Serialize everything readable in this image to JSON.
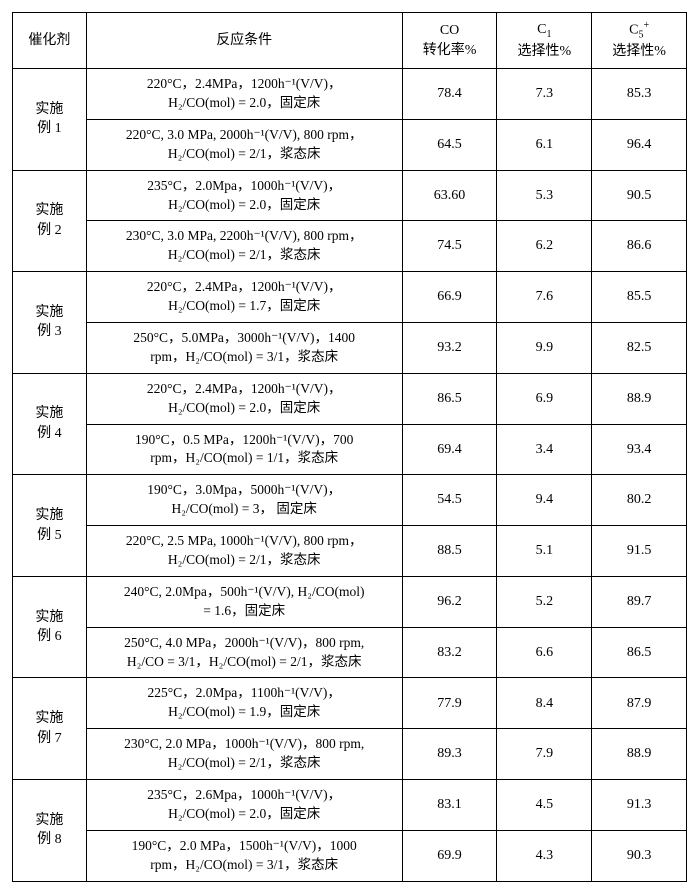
{
  "header": {
    "catalyst": "催化剂",
    "conditions": "反应条件",
    "co_conv": "CO\n转化率%",
    "c1_sel": "C₁\n选择性%",
    "c5_sel": "C₅⁺\n选择性%"
  },
  "rows": [
    {
      "catalyst": "实施\n例 1",
      "sub": [
        {
          "cond": "220°C，2.4MPa，1200h⁻¹(V/V)，\nH₂/CO(mol) = 2.0，固定床",
          "co": "78.4",
          "c1": "7.3",
          "c5": "85.3"
        },
        {
          "cond": "220°C, 3.0 MPa, 2000h⁻¹(V/V), 800 rpm，\nH₂/CO(mol) = 2/1，浆态床",
          "co": "64.5",
          "c1": "6.1",
          "c5": "96.4"
        }
      ]
    },
    {
      "catalyst": "实施\n例 2",
      "sub": [
        {
          "cond": "235°C，2.0Mpa，1000h⁻¹(V/V)，\nH₂/CO(mol) = 2.0，固定床",
          "co": "63.60",
          "c1": "5.3",
          "c5": "90.5"
        },
        {
          "cond": "230°C, 3.0 MPa, 2200h⁻¹(V/V), 800 rpm，\nH₂/CO(mol) = 2/1，浆态床",
          "co": "74.5",
          "c1": "6.2",
          "c5": "86.6"
        }
      ]
    },
    {
      "catalyst": "实施\n例 3",
      "sub": [
        {
          "cond": "220°C，2.4MPa，1200h⁻¹(V/V)，\nH₂/CO(mol) = 1.7，固定床",
          "co": "66.9",
          "c1": "7.6",
          "c5": "85.5"
        },
        {
          "cond": "250°C，5.0MPa，3000h⁻¹(V/V)，1400\nrpm，H₂/CO(mol) = 3/1，浆态床",
          "co": "93.2",
          "c1": "9.9",
          "c5": "82.5"
        }
      ]
    },
    {
      "catalyst": "实施\n例 4",
      "sub": [
        {
          "cond": "220°C，2.4MPa，1200h⁻¹(V/V)，\nH₂/CO(mol) = 2.0，固定床",
          "co": "86.5",
          "c1": "6.9",
          "c5": "88.9"
        },
        {
          "cond": "190°C，0.5 MPa，1200h⁻¹(V/V)，700\nrpm，H₂/CO(mol) = 1/1，浆态床",
          "co": "69.4",
          "c1": "3.4",
          "c5": "93.4"
        }
      ]
    },
    {
      "catalyst": "实施\n例 5",
      "sub": [
        {
          "cond": "190°C，3.0Mpa，5000h⁻¹(V/V)，\nH₂/CO(mol) = 3，  固定床",
          "co": "54.5",
          "c1": "9.4",
          "c5": "80.2"
        },
        {
          "cond": "220°C, 2.5 MPa, 1000h⁻¹(V/V), 800 rpm，\nH₂/CO(mol) = 2/1，浆态床",
          "co": "88.5",
          "c1": "5.1",
          "c5": "91.5"
        }
      ]
    },
    {
      "catalyst": "实施\n例 6",
      "sub": [
        {
          "cond": "240°C, 2.0Mpa，500h⁻¹(V/V), H₂/CO(mol)\n= 1.6，固定床",
          "co": "96.2",
          "c1": "5.2",
          "c5": "89.7"
        },
        {
          "cond": "250°C, 4.0 MPa，2000h⁻¹(V/V)，800 rpm,\nH₂/CO = 3/1，H₂/CO(mol) = 2/1，浆态床",
          "co": "83.2",
          "c1": "6.6",
          "c5": "86.5"
        }
      ]
    },
    {
      "catalyst": "实施\n例 7",
      "sub": [
        {
          "cond": "225°C，2.0Mpa，1100h⁻¹(V/V)，\nH₂/CO(mol) = 1.9，固定床",
          "co": "77.9",
          "c1": "8.4",
          "c5": "87.9"
        },
        {
          "cond": "230°C, 2.0 MPa，1000h⁻¹(V/V)，800 rpm,\nH₂/CO(mol) = 2/1，浆态床",
          "co": "89.3",
          "c1": "7.9",
          "c5": "88.9"
        }
      ]
    },
    {
      "catalyst": "实施\n例 8",
      "sub": [
        {
          "cond": "235°C，2.6Mpa，1000h⁻¹(V/V)，\nH₂/CO(mol) = 2.0，固定床",
          "co": "83.1",
          "c1": "4.5",
          "c5": "91.3"
        },
        {
          "cond": "190°C，2.0 MPa，1500h⁻¹(V/V)，1000\nrpm，H₂/CO(mol) = 3/1，浆态床",
          "co": "69.9",
          "c1": "4.3",
          "c5": "90.3"
        }
      ]
    }
  ]
}
